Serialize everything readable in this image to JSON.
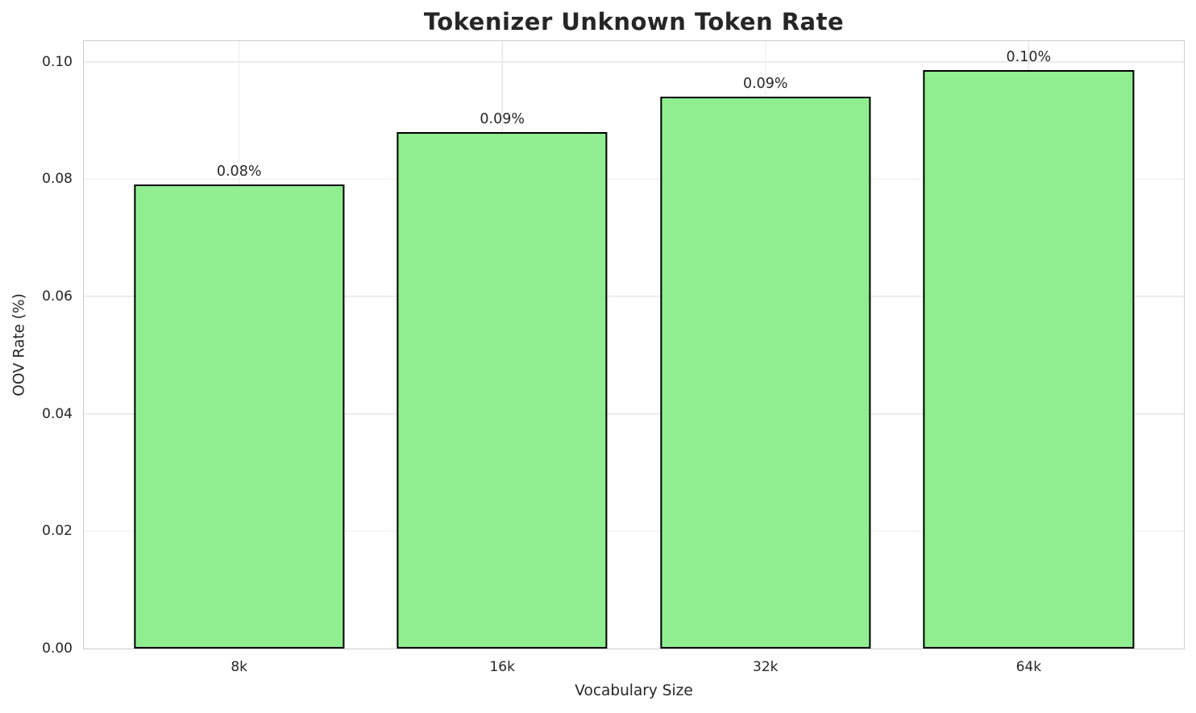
{
  "chart_data": {
    "type": "bar",
    "title": "Tokenizer Unknown Token Rate",
    "xlabel": "Vocabulary Size",
    "ylabel": "OOV Rate (%)",
    "categories": [
      "8k",
      "16k",
      "32k",
      "64k"
    ],
    "values": [
      0.079,
      0.088,
      0.094,
      0.0985
    ],
    "bar_labels": [
      "0.08%",
      "0.09%",
      "0.09%",
      "0.10%"
    ],
    "ylim": [
      0,
      0.1035
    ],
    "yticks": [
      0.0,
      0.02,
      0.04,
      0.06,
      0.08,
      0.1
    ],
    "ytick_labels": [
      "0.00",
      "0.02",
      "0.04",
      "0.06",
      "0.08",
      "0.10"
    ],
    "grid": true,
    "grid_axes": "both",
    "legend": false,
    "bar_color": "#90EE90",
    "bar_edge_color": "#000000",
    "background_color": "#ffffff",
    "text_color": "#262626",
    "layout": {
      "x_margin": 0.59,
      "bar_width": 0.8
    }
  }
}
